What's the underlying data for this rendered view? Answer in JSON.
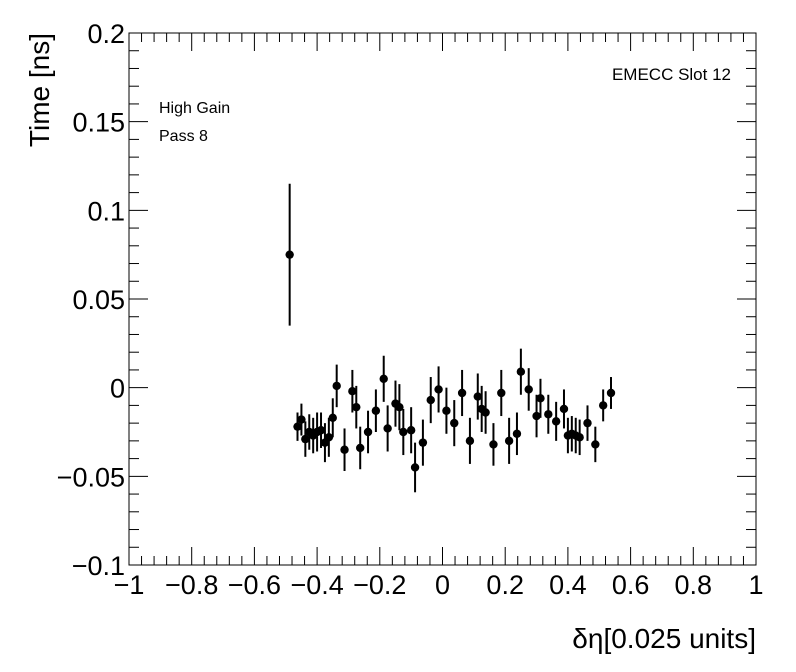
{
  "chart_data": {
    "type": "scatter",
    "title": "",
    "xlabel": "δη[0.025 units]",
    "ylabel": "Time [ns]",
    "xlim": [
      -1,
      1
    ],
    "ylim": [
      -0.1,
      0.2
    ],
    "x_ticks": [
      -1,
      -0.8,
      -0.6,
      -0.4,
      -0.2,
      0,
      0.2,
      0.4,
      0.6,
      0.8,
      1
    ],
    "x_tick_labels": [
      "−1",
      "−0.8",
      "−0.6",
      "−0.4",
      "−0.2",
      "0",
      "0.2",
      "0.4",
      "0.6",
      "0.8",
      "1"
    ],
    "y_ticks": [
      -0.1,
      -0.05,
      0,
      0.05,
      0.1,
      0.15,
      0.2
    ],
    "y_tick_labels": [
      "−0.1",
      "−0.05",
      "0",
      "0.05",
      "0.1",
      "0.15",
      "0.2"
    ],
    "grid": false,
    "annotations": {
      "top_right": "EMECC Slot 12",
      "line1": "High Gain",
      "line2": "Pass 8"
    },
    "series": [
      {
        "marker_color": "#000000",
        "points": [
          {
            "x": -0.4875,
            "y": 0.075,
            "err": 0.04
          },
          {
            "x": -0.4625,
            "y": -0.022,
            "err": 0.008
          },
          {
            "x": -0.45,
            "y": -0.018,
            "err": 0.009
          },
          {
            "x": -0.4375,
            "y": -0.029,
            "err": 0.01
          },
          {
            "x": -0.425,
            "y": -0.025,
            "err": 0.01
          },
          {
            "x": -0.4125,
            "y": -0.027,
            "err": 0.01
          },
          {
            "x": -0.4,
            "y": -0.025,
            "err": 0.011
          },
          {
            "x": -0.3875,
            "y": -0.024,
            "err": 0.01
          },
          {
            "x": -0.375,
            "y": -0.031,
            "err": 0.011
          },
          {
            "x": -0.3625,
            "y": -0.028,
            "err": 0.011
          },
          {
            "x": -0.35,
            "y": -0.017,
            "err": 0.011
          },
          {
            "x": -0.3375,
            "y": 0.001,
            "err": 0.012
          },
          {
            "x": -0.3125,
            "y": -0.035,
            "err": 0.012
          },
          {
            "x": -0.2875,
            "y": -0.002,
            "err": 0.012
          },
          {
            "x": -0.275,
            "y": -0.011,
            "err": 0.012
          },
          {
            "x": -0.2625,
            "y": -0.034,
            "err": 0.012
          },
          {
            "x": -0.2375,
            "y": -0.025,
            "err": 0.012
          },
          {
            "x": -0.2125,
            "y": -0.013,
            "err": 0.012
          },
          {
            "x": -0.1875,
            "y": 0.005,
            "err": 0.013
          },
          {
            "x": -0.175,
            "y": -0.023,
            "err": 0.013
          },
          {
            "x": -0.15,
            "y": -0.009,
            "err": 0.013
          },
          {
            "x": -0.1375,
            "y": -0.011,
            "err": 0.013
          },
          {
            "x": -0.125,
            "y": -0.025,
            "err": 0.013
          },
          {
            "x": -0.1,
            "y": -0.024,
            "err": 0.013
          },
          {
            "x": -0.0875,
            "y": -0.045,
            "err": 0.014
          },
          {
            "x": -0.0625,
            "y": -0.031,
            "err": 0.013
          },
          {
            "x": -0.0375,
            "y": -0.007,
            "err": 0.013
          },
          {
            "x": -0.0125,
            "y": -0.001,
            "err": 0.013
          },
          {
            "x": 0.0125,
            "y": -0.013,
            "err": 0.013
          },
          {
            "x": 0.0375,
            "y": -0.02,
            "err": 0.013
          },
          {
            "x": 0.0625,
            "y": -0.003,
            "err": 0.013
          },
          {
            "x": 0.0875,
            "y": -0.03,
            "err": 0.013
          },
          {
            "x": 0.1125,
            "y": -0.005,
            "err": 0.013
          },
          {
            "x": 0.125,
            "y": -0.012,
            "err": 0.013
          },
          {
            "x": 0.1375,
            "y": -0.014,
            "err": 0.012
          },
          {
            "x": 0.1625,
            "y": -0.032,
            "err": 0.012
          },
          {
            "x": 0.1875,
            "y": -0.003,
            "err": 0.013
          },
          {
            "x": 0.2125,
            "y": -0.03,
            "err": 0.013
          },
          {
            "x": 0.2375,
            "y": -0.026,
            "err": 0.012
          },
          {
            "x": 0.25,
            "y": 0.009,
            "err": 0.013
          },
          {
            "x": 0.275,
            "y": -0.001,
            "err": 0.012
          },
          {
            "x": 0.3,
            "y": -0.016,
            "err": 0.012
          },
          {
            "x": 0.3125,
            "y": -0.006,
            "err": 0.011
          },
          {
            "x": 0.3375,
            "y": -0.015,
            "err": 0.011
          },
          {
            "x": 0.3625,
            "y": -0.019,
            "err": 0.011
          },
          {
            "x": 0.3875,
            "y": -0.012,
            "err": 0.011
          },
          {
            "x": 0.4,
            "y": -0.027,
            "err": 0.01
          },
          {
            "x": 0.4125,
            "y": -0.026,
            "err": 0.01
          },
          {
            "x": 0.425,
            "y": -0.027,
            "err": 0.01
          },
          {
            "x": 0.4375,
            "y": -0.028,
            "err": 0.01
          },
          {
            "x": 0.4625,
            "y": -0.02,
            "err": 0.01
          },
          {
            "x": 0.4875,
            "y": -0.032,
            "err": 0.01
          },
          {
            "x": 0.5125,
            "y": -0.01,
            "err": 0.009
          },
          {
            "x": 0.5375,
            "y": -0.003,
            "err": 0.009
          }
        ]
      }
    ]
  }
}
